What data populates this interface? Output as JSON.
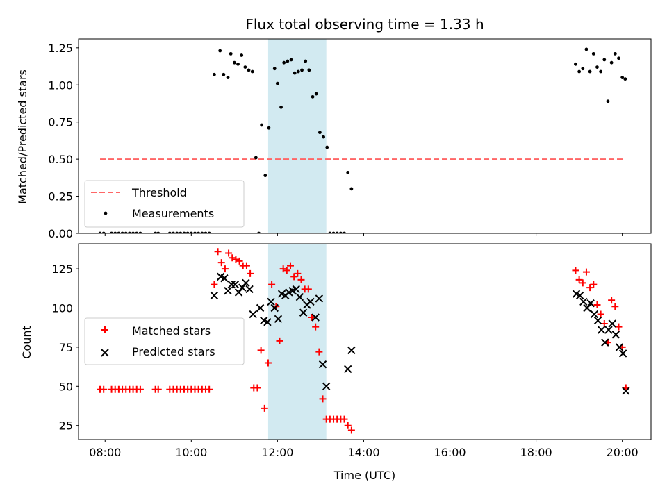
{
  "figure": {
    "title": "Flux total observing time = 1.33 h",
    "xlabel": "Time (UTC)"
  },
  "chart_data": [
    {
      "type": "scatter",
      "panel": "top",
      "ylabel": "Matched/Predicted stars",
      "xlim": [
        "07:23",
        "20:40"
      ],
      "ylim": [
        0,
        1.31
      ],
      "yticks": [
        0.0,
        0.25,
        0.5,
        0.75,
        1.0,
        1.25
      ],
      "ytick_labels": [
        "0.00",
        "0.25",
        "0.50",
        "0.75",
        "1.00",
        "1.25"
      ],
      "grid": false,
      "legend": {
        "location": "lower-left",
        "entries": [
          "Threshold",
          "Measurements"
        ]
      },
      "shaded_span": {
        "x0": "11:47",
        "x1": "13:08",
        "color": "#add8e6"
      },
      "threshold": {
        "name": "Threshold",
        "value": 0.5,
        "x0": "07:53",
        "x1": "20:03",
        "color": "#ff6666",
        "style": "dashed"
      },
      "series": [
        {
          "name": "Measurements",
          "color": "#000000",
          "points": [
            [
              "07:53",
              0
            ],
            [
              "07:58",
              0
            ],
            [
              "08:09",
              0
            ],
            [
              "08:14",
              0
            ],
            [
              "08:19",
              0
            ],
            [
              "08:24",
              0
            ],
            [
              "08:29",
              0
            ],
            [
              "08:34",
              0
            ],
            [
              "08:39",
              0
            ],
            [
              "08:44",
              0
            ],
            [
              "08:49",
              0
            ],
            [
              "09:10",
              0
            ],
            [
              "09:14",
              0
            ],
            [
              "09:30",
              0
            ],
            [
              "09:35",
              0
            ],
            [
              "09:40",
              0
            ],
            [
              "09:45",
              0
            ],
            [
              "09:50",
              0
            ],
            [
              "09:55",
              0
            ],
            [
              "10:00",
              0
            ],
            [
              "10:05",
              0
            ],
            [
              "10:10",
              0
            ],
            [
              "10:15",
              0
            ],
            [
              "10:20",
              0
            ],
            [
              "10:25",
              0
            ],
            [
              "10:32",
              1.07
            ],
            [
              "10:40",
              1.23
            ],
            [
              "10:45",
              1.07
            ],
            [
              "10:51",
              1.05
            ],
            [
              "10:55",
              1.21
            ],
            [
              "11:00",
              1.15
            ],
            [
              "11:05",
              1.14
            ],
            [
              "11:10",
              1.2
            ],
            [
              "11:15",
              1.12
            ],
            [
              "11:20",
              1.1
            ],
            [
              "11:25",
              1.09
            ],
            [
              "11:30",
              0.51
            ],
            [
              "11:34",
              0
            ],
            [
              "11:38",
              0.73
            ],
            [
              "11:43",
              0.39
            ],
            [
              "11:48",
              0.71
            ],
            [
              "11:56",
              1.11
            ],
            [
              "12:00",
              1.01
            ],
            [
              "12:05",
              0.85
            ],
            [
              "12:09",
              1.15
            ],
            [
              "12:14",
              1.16
            ],
            [
              "12:19",
              1.17
            ],
            [
              "12:24",
              1.08
            ],
            [
              "12:29",
              1.09
            ],
            [
              "12:34",
              1.1
            ],
            [
              "12:39",
              1.16
            ],
            [
              "12:44",
              1.1
            ],
            [
              "12:49",
              0.92
            ],
            [
              "12:54",
              0.94
            ],
            [
              "12:59",
              0.68
            ],
            [
              "13:04",
              0.65
            ],
            [
              "13:09",
              0.58
            ],
            [
              "13:13",
              0
            ],
            [
              "13:18",
              0
            ],
            [
              "13:23",
              0
            ],
            [
              "13:28",
              0
            ],
            [
              "13:33",
              0
            ],
            [
              "13:38",
              0.41
            ],
            [
              "13:43",
              0.3
            ],
            [
              "18:55",
              1.14
            ],
            [
              "19:00",
              1.09
            ],
            [
              "19:05",
              1.11
            ],
            [
              "19:10",
              1.24
            ],
            [
              "19:15",
              1.09
            ],
            [
              "19:20",
              1.21
            ],
            [
              "19:25",
              1.12
            ],
            [
              "19:30",
              1.09
            ],
            [
              "19:35",
              1.17
            ],
            [
              "19:40",
              0.89
            ],
            [
              "19:45",
              1.15
            ],
            [
              "19:50",
              1.21
            ],
            [
              "19:55",
              1.18
            ],
            [
              "20:00",
              1.05
            ],
            [
              "20:04",
              1.04
            ]
          ]
        }
      ]
    },
    {
      "type": "scatter",
      "panel": "bottom",
      "ylabel": "Count",
      "xlabel": "Time (UTC)",
      "xlim": [
        "07:23",
        "20:40"
      ],
      "ylim": [
        16,
        141
      ],
      "xticks": [
        "08:00",
        "10:00",
        "12:00",
        "14:00",
        "16:00",
        "18:00",
        "20:00"
      ],
      "yticks": [
        25,
        50,
        75,
        100,
        125
      ],
      "grid": false,
      "legend": {
        "location": "center-left",
        "entries": [
          "Matched stars",
          "Predicted stars"
        ]
      },
      "shaded_span": {
        "x0": "11:47",
        "x1": "13:08",
        "color": "#add8e6"
      },
      "series": [
        {
          "name": "Matched stars",
          "color": "#ff0000",
          "marker": "plus",
          "points": [
            [
              "07:53",
              48
            ],
            [
              "07:58",
              48
            ],
            [
              "08:09",
              48
            ],
            [
              "08:14",
              48
            ],
            [
              "08:19",
              48
            ],
            [
              "08:24",
              48
            ],
            [
              "08:29",
              48
            ],
            [
              "08:34",
              48
            ],
            [
              "08:39",
              48
            ],
            [
              "08:44",
              48
            ],
            [
              "08:49",
              48
            ],
            [
              "09:10",
              48
            ],
            [
              "09:14",
              48
            ],
            [
              "09:30",
              48
            ],
            [
              "09:35",
              48
            ],
            [
              "09:40",
              48
            ],
            [
              "09:45",
              48
            ],
            [
              "09:50",
              48
            ],
            [
              "09:55",
              48
            ],
            [
              "10:00",
              48
            ],
            [
              "10:05",
              48
            ],
            [
              "10:10",
              48
            ],
            [
              "10:15",
              48
            ],
            [
              "10:20",
              48
            ],
            [
              "10:25",
              48
            ],
            [
              "10:32",
              115
            ],
            [
              "10:37",
              136
            ],
            [
              "10:42",
              129
            ],
            [
              "10:47",
              125
            ],
            [
              "10:52",
              135
            ],
            [
              "10:57",
              132
            ],
            [
              "11:02",
              131
            ],
            [
              "11:07",
              130
            ],
            [
              "11:12",
              127
            ],
            [
              "11:17",
              127
            ],
            [
              "11:22",
              122
            ],
            [
              "11:27",
              49
            ],
            [
              "11:32",
              49
            ],
            [
              "11:37",
              73
            ],
            [
              "11:42",
              36
            ],
            [
              "11:47",
              65
            ],
            [
              "11:52",
              115
            ],
            [
              "11:58",
              101
            ],
            [
              "12:03",
              79
            ],
            [
              "12:08",
              125
            ],
            [
              "12:13",
              124
            ],
            [
              "12:18",
              127
            ],
            [
              "12:23",
              120
            ],
            [
              "12:28",
              122
            ],
            [
              "12:33",
              118
            ],
            [
              "12:38",
              112
            ],
            [
              "12:43",
              112
            ],
            [
              "12:48",
              94
            ],
            [
              "12:53",
              88
            ],
            [
              "12:58",
              72
            ],
            [
              "13:03",
              42
            ],
            [
              "13:08",
              29
            ],
            [
              "13:13",
              29
            ],
            [
              "13:18",
              29
            ],
            [
              "13:23",
              29
            ],
            [
              "13:28",
              29
            ],
            [
              "13:33",
              29
            ],
            [
              "13:38",
              25
            ],
            [
              "13:43",
              22
            ],
            [
              "18:55",
              124
            ],
            [
              "19:00",
              118
            ],
            [
              "19:05",
              116
            ],
            [
              "19:10",
              123
            ],
            [
              "19:15",
              113
            ],
            [
              "19:20",
              115
            ],
            [
              "19:25",
              102
            ],
            [
              "19:30",
              96
            ],
            [
              "19:35",
              90
            ],
            [
              "19:40",
              78
            ],
            [
              "19:45",
              105
            ],
            [
              "19:50",
              101
            ],
            [
              "19:55",
              88
            ],
            [
              "20:00",
              75
            ],
            [
              "20:05",
              49
            ]
          ]
        },
        {
          "name": "Predicted stars",
          "color": "#000000",
          "marker": "x",
          "points": [
            [
              "10:32",
              108
            ],
            [
              "10:41",
              120
            ],
            [
              "10:46",
              119
            ],
            [
              "10:51",
              111
            ],
            [
              "10:56",
              115
            ],
            [
              "11:01",
              115
            ],
            [
              "11:06",
              110
            ],
            [
              "11:11",
              113
            ],
            [
              "11:16",
              116
            ],
            [
              "11:21",
              112
            ],
            [
              "11:26",
              96
            ],
            [
              "11:36",
              100
            ],
            [
              "11:41",
              92
            ],
            [
              "11:46",
              91
            ],
            [
              "11:51",
              104
            ],
            [
              "11:56",
              100
            ],
            [
              "12:01",
              93
            ],
            [
              "12:06",
              109
            ],
            [
              "12:11",
              108
            ],
            [
              "12:16",
              110
            ],
            [
              "12:21",
              111
            ],
            [
              "12:26",
              112
            ],
            [
              "12:31",
              107
            ],
            [
              "12:36",
              97
            ],
            [
              "12:41",
              102
            ],
            [
              "12:46",
              104
            ],
            [
              "12:53",
              94
            ],
            [
              "12:58",
              106
            ],
            [
              "13:03",
              64
            ],
            [
              "13:08",
              50
            ],
            [
              "13:38",
              61
            ],
            [
              "13:43",
              73
            ],
            [
              "18:56",
              109
            ],
            [
              "19:01",
              108
            ],
            [
              "19:06",
              104
            ],
            [
              "19:11",
              100
            ],
            [
              "19:16",
              103
            ],
            [
              "19:21",
              96
            ],
            [
              "19:26",
              92
            ],
            [
              "19:31",
              86
            ],
            [
              "19:36",
              78
            ],
            [
              "19:41",
              86
            ],
            [
              "19:46",
              90
            ],
            [
              "19:51",
              83
            ],
            [
              "19:56",
              75
            ],
            [
              "20:01",
              71
            ],
            [
              "20:05",
              47
            ]
          ]
        }
      ]
    }
  ]
}
